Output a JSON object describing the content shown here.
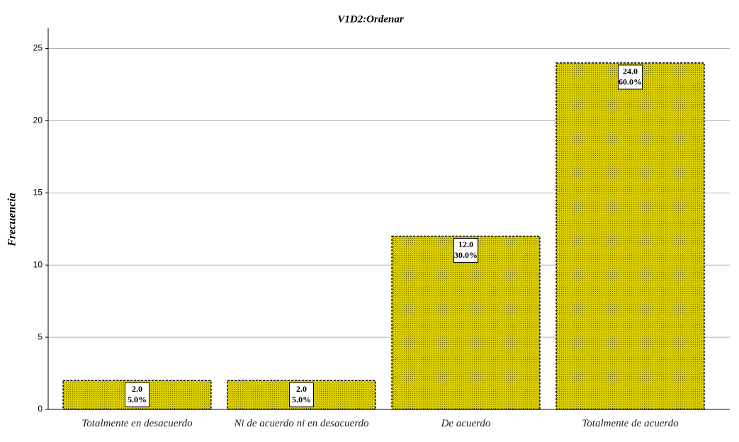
{
  "chart_data": {
    "type": "bar",
    "title": "V1D2:Ordenar",
    "y_label": "Frecuencia",
    "categories": [
      "Totalmente en desacuerdo",
      "Ni de acuerdo ni en desacuerdo",
      "De acuerdo",
      "Totalmente de acuerdo"
    ],
    "values": [
      2,
      2,
      12,
      24
    ],
    "value_labels": [
      "2.0",
      "2.0",
      "12.0",
      "24.0"
    ],
    "percent_labels": [
      "5.0%",
      "5.0%",
      "30.0%",
      "60.0%"
    ],
    "color": "#d8cc00",
    "ylim": [
      0,
      26.4
    ],
    "yticks": [
      0,
      5,
      10,
      15,
      20,
      25
    ],
    "grid": true
  }
}
